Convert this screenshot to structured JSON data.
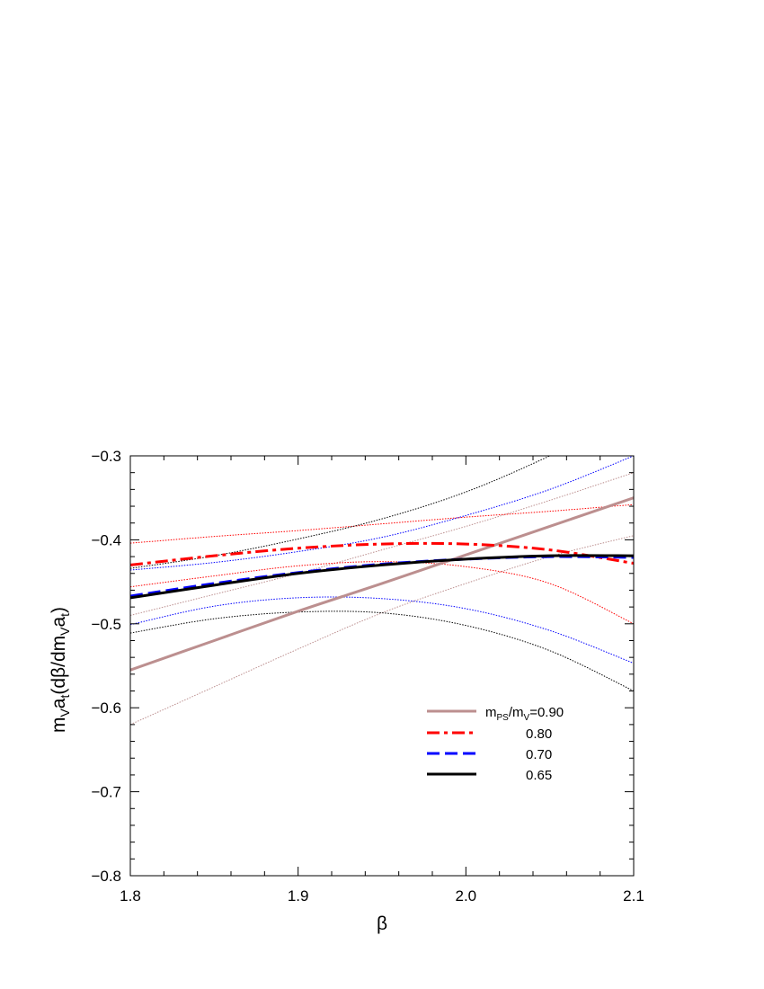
{
  "chart_data": {
    "type": "line",
    "title": "",
    "xlabel": "β",
    "ylabel": "m_V a_t (dβ/dm_V a_t)",
    "xlim": [
      1.8,
      2.1
    ],
    "ylim": [
      -0.8,
      -0.3
    ],
    "x_ticks": [
      1.8,
      1.9,
      2.0,
      2.1
    ],
    "x_tick_labels": [
      "1.8",
      "1.9",
      "2.0",
      "2.1"
    ],
    "y_ticks": [
      -0.8,
      -0.7,
      -0.6,
      -0.5,
      -0.4,
      -0.3
    ],
    "y_tick_labels": [
      "−0.8",
      "−0.7",
      "−0.6",
      "−0.5",
      "−0.4",
      "−0.3"
    ],
    "grid": false,
    "legend": {
      "placement": "lower-right",
      "entries": [
        {
          "label": "m_PS/m_V=0.90",
          "series": 0
        },
        {
          "label": "0.80",
          "series": 1
        },
        {
          "label": "0.70",
          "series": 2
        },
        {
          "label": "0.65",
          "series": 3
        }
      ]
    },
    "series": [
      {
        "color": "#bc8f8f",
        "dash": "solid",
        "x": [
          1.8,
          1.85,
          1.9,
          1.95,
          2.0,
          2.05,
          2.1
        ],
        "y": [
          -0.555,
          -0.52,
          -0.485,
          -0.452,
          -0.418,
          -0.384,
          -0.35
        ],
        "band_upper": {
          "x": [
            1.8,
            1.85,
            1.9,
            1.95,
            2.0,
            2.05,
            2.1
          ],
          "y": [
            -0.49,
            -0.465,
            -0.44,
            -0.412,
            -0.384,
            -0.353,
            -0.32
          ]
        },
        "band_lower": {
          "x": [
            1.8,
            1.85,
            1.9,
            1.95,
            2.0,
            2.05,
            2.1
          ],
          "y": [
            -0.62,
            -0.575,
            -0.53,
            -0.487,
            -0.452,
            -0.42,
            -0.395
          ]
        }
      },
      {
        "color": "#ff0000",
        "dash": "dashdot",
        "x": [
          1.8,
          1.85,
          1.9,
          1.95,
          2.0,
          2.05,
          2.1
        ],
        "y": [
          -0.43,
          -0.419,
          -0.41,
          -0.405,
          -0.405,
          -0.412,
          -0.428
        ],
        "band_upper": {
          "x": [
            1.8,
            1.85,
            1.9,
            1.95,
            2.0,
            2.05,
            2.1
          ],
          "y": [
            -0.404,
            -0.396,
            -0.389,
            -0.381,
            -0.373,
            -0.366,
            -0.358
          ]
        },
        "band_lower": {
          "x": [
            1.8,
            1.85,
            1.9,
            1.95,
            2.0,
            2.05,
            2.1
          ],
          "y": [
            -0.456,
            -0.443,
            -0.431,
            -0.426,
            -0.432,
            -0.452,
            -0.5
          ]
        }
      },
      {
        "color": "#0000ff",
        "dash": "dash",
        "x": [
          1.8,
          1.85,
          1.9,
          1.95,
          2.0,
          2.05,
          2.1
        ],
        "y": [
          -0.467,
          -0.452,
          -0.439,
          -0.429,
          -0.423,
          -0.42,
          -0.421
        ],
        "band_upper": {
          "x": [
            1.8,
            1.85,
            1.9,
            1.95,
            2.0,
            2.05,
            2.1
          ],
          "y": [
            -0.436,
            -0.427,
            -0.414,
            -0.397,
            -0.371,
            -0.34,
            -0.3
          ]
        },
        "band_lower": {
          "x": [
            1.8,
            1.85,
            1.9,
            1.95,
            2.0,
            2.05,
            2.1
          ],
          "y": [
            -0.501,
            -0.479,
            -0.469,
            -0.47,
            -0.482,
            -0.508,
            -0.547
          ]
        }
      },
      {
        "color": "#000000",
        "dash": "solid",
        "x": [
          1.8,
          1.85,
          1.9,
          1.95,
          2.0,
          2.05,
          2.1
        ],
        "y": [
          -0.469,
          -0.454,
          -0.44,
          -0.43,
          -0.423,
          -0.419,
          -0.419
        ],
        "band_upper": {
          "x": [
            1.8,
            1.85,
            1.9,
            1.95,
            2.0,
            2.05,
            2.1
          ],
          "y": [
            -0.434,
            -0.419,
            -0.399,
            -0.375,
            -0.343,
            -0.3,
            -0.25
          ]
        },
        "band_lower": {
          "x": [
            1.8,
            1.85,
            1.9,
            1.95,
            2.0,
            2.05,
            2.1
          ],
          "y": [
            -0.511,
            -0.494,
            -0.486,
            -0.487,
            -0.502,
            -0.532,
            -0.58
          ]
        }
      }
    ]
  }
}
